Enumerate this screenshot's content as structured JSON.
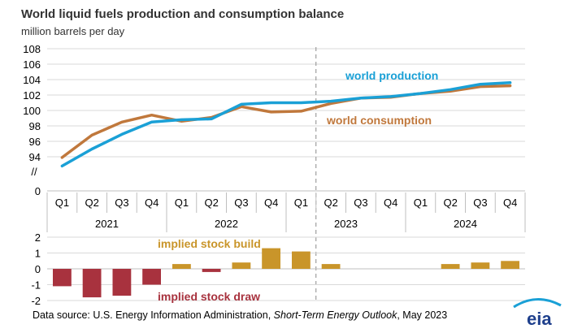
{
  "chart_data": [
    {
      "type": "line",
      "title": "World liquid fuels production and consumption balance",
      "ylabel": "million barrels per day",
      "ylim": [
        0,
        108
      ],
      "axis_break": true,
      "yticks": [
        "94",
        "96",
        "98",
        "100",
        "102",
        "104",
        "106",
        "108"
      ],
      "ybase_label": "0",
      "break_symbol": "//",
      "categories": [
        "Q1",
        "Q2",
        "Q3",
        "Q4",
        "Q1",
        "Q2",
        "Q3",
        "Q4",
        "Q1",
        "Q2",
        "Q3",
        "Q4",
        "Q1",
        "Q2",
        "Q3",
        "Q4"
      ],
      "years": [
        "2021",
        "2022",
        "2023",
        "2024"
      ],
      "forecast_start_category": 9,
      "series": [
        {
          "name": "world production",
          "color": "#1aa0d6",
          "values": [
            92.8,
            95.0,
            96.9,
            98.5,
            98.8,
            98.9,
            100.8,
            101.0,
            101.0,
            101.2,
            101.6,
            101.8,
            102.2,
            102.7,
            103.4,
            103.6
          ]
        },
        {
          "name": "world consumption",
          "color": "#c0783c",
          "values": [
            93.9,
            96.8,
            98.5,
            99.4,
            98.6,
            99.1,
            100.5,
            99.8,
            99.9,
            100.9,
            101.6,
            101.7,
            102.2,
            102.5,
            103.1,
            103.2
          ]
        }
      ],
      "grid": true,
      "legend": "inline labels"
    },
    {
      "type": "bar",
      "ylim": [
        -2,
        2
      ],
      "yticks": [
        "-2",
        "-1",
        "0",
        "1",
        "2"
      ],
      "values": [
        -1.1,
        -1.8,
        -1.7,
        -1.0,
        0.3,
        -0.2,
        0.4,
        1.3,
        1.1,
        0.3,
        0.0,
        0.0,
        0.0,
        0.3,
        0.4,
        0.5
      ],
      "positive_label": "implied stock build",
      "negative_label": "implied stock draw",
      "positive_color": "#c9952a",
      "negative_color": "#a8323e"
    }
  ],
  "source": {
    "prefix": "Data source: U.S. Energy Information Administration, ",
    "italic": "Short-Term Energy Outlook",
    "suffix": ", May 2023"
  },
  "logo": {
    "text": "eia",
    "color": "#1e3f8c",
    "accent": "#1aa0d6"
  }
}
